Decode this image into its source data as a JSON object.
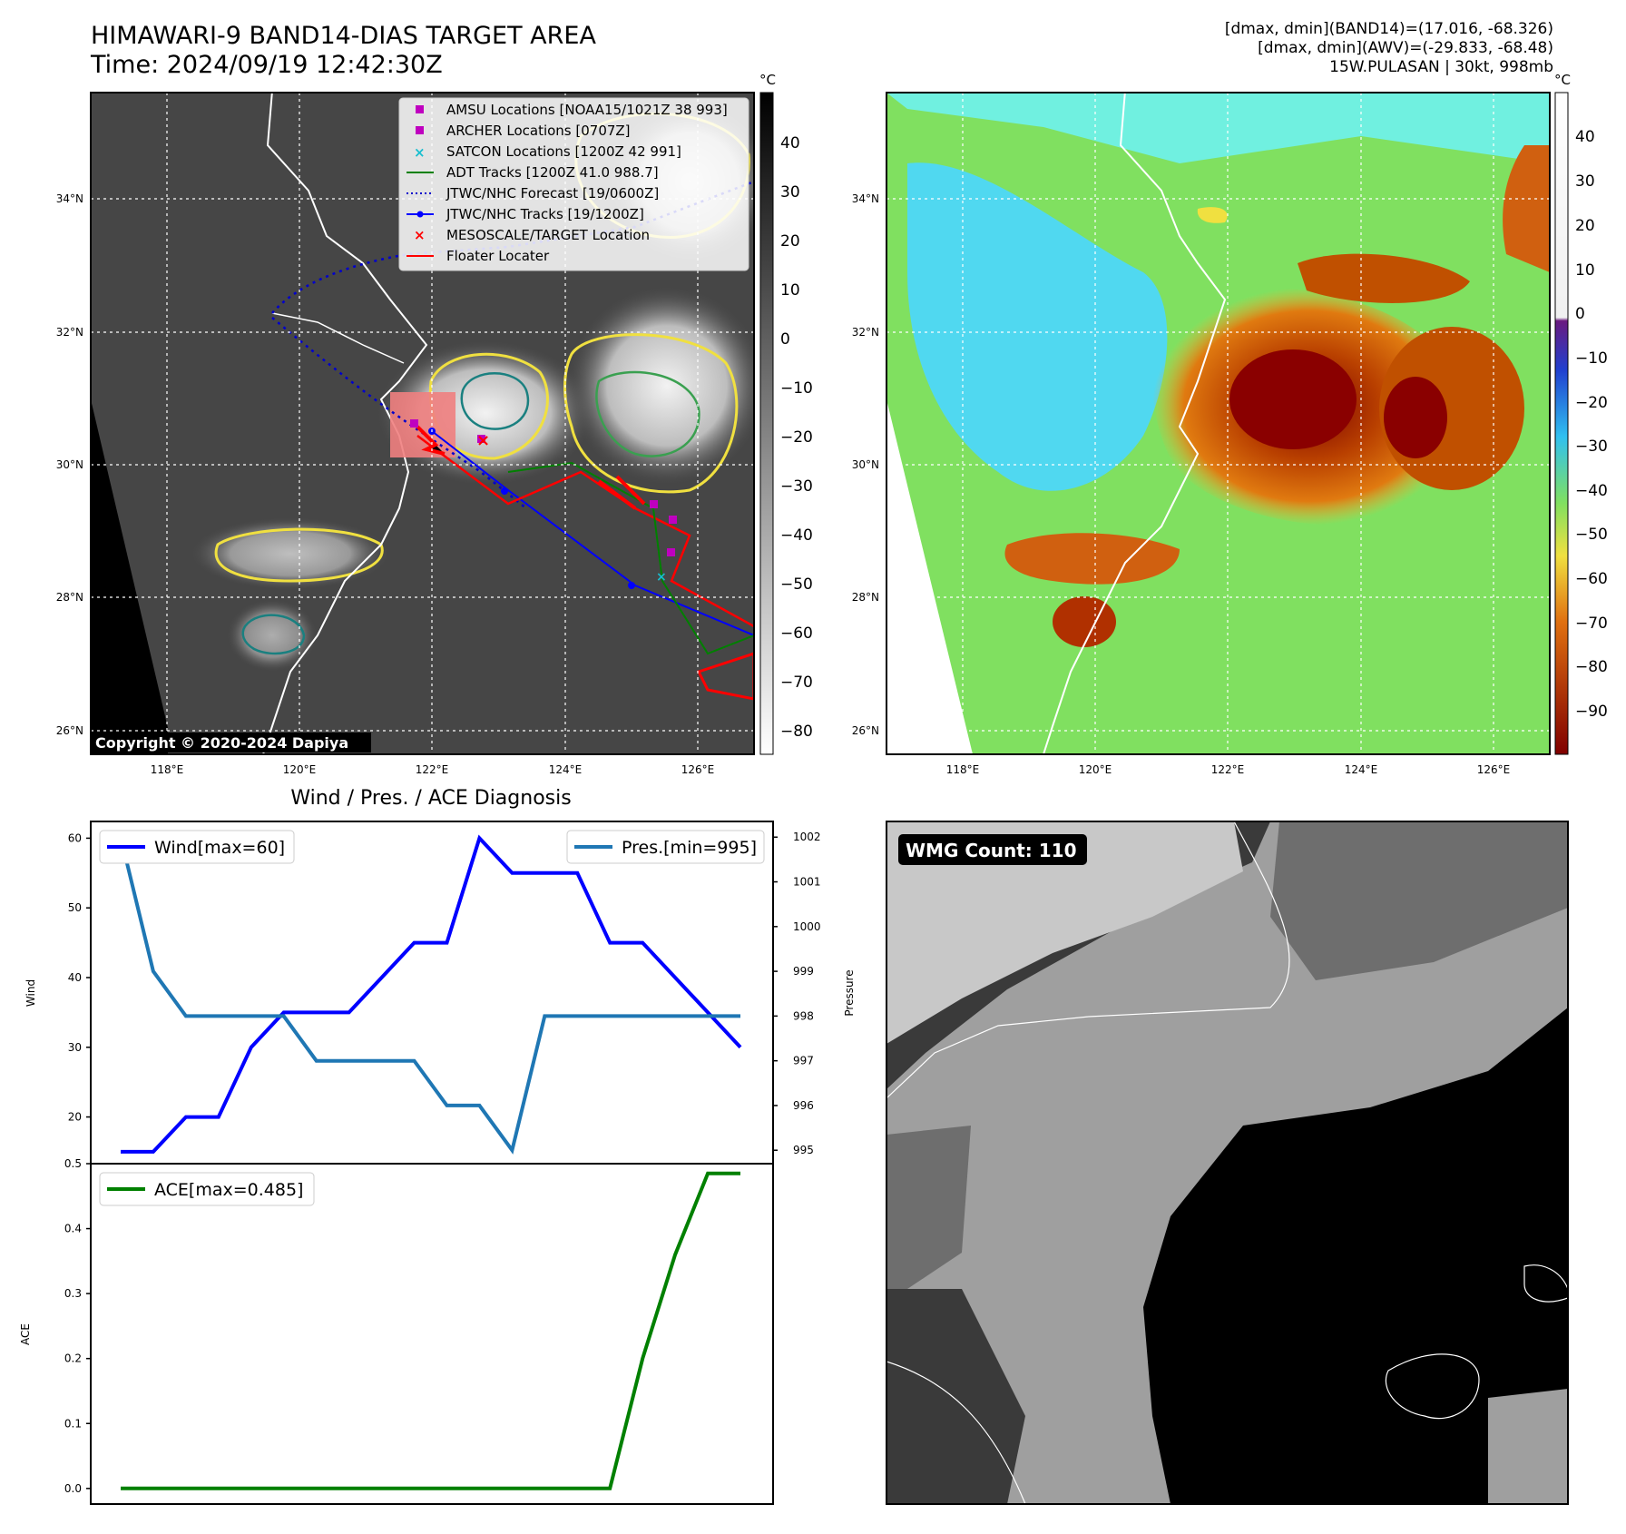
{
  "header": {
    "title": "HIMAWARI-9 BAND14-DIAS TARGET AREA",
    "time": "Time: 2024/09/19 12:42:30Z",
    "stats_band14": "[dmax, dmin](BAND14)=(17.016, -68.326)",
    "stats_awv": "[dmax, dmin](AWV)=(-29.833, -68.48)",
    "storm": "15W.PULASAN | 30kt, 998mb"
  },
  "map_common": {
    "lon_ticks": [
      "118°E",
      "120°E",
      "122°E",
      "124°E",
      "126°E"
    ],
    "lat_ticks": [
      "34°N",
      "32°N",
      "30°N",
      "28°N",
      "26°N"
    ],
    "unit": "°C"
  },
  "ir_panel": {
    "colorbar_ticks": [
      "40",
      "30",
      "20",
      "10",
      "0",
      "−10",
      "−20",
      "−30",
      "−40",
      "−50",
      "−60",
      "−70",
      "−80"
    ],
    "copyright": "Copyright © 2020-2024 Dapiya",
    "legend": [
      {
        "label": "AMSU Locations [NOAA15/1021Z 38 993]",
        "color": "#bf00bf",
        "marker": "square"
      },
      {
        "label": "ARCHER Locations [0707Z]",
        "color": "#bf00bf",
        "marker": "square"
      },
      {
        "label": "SATCON Locations [1200Z 42 991]",
        "color": "#17becf",
        "marker": "x"
      },
      {
        "label": "ADT Tracks [1200Z 41.0 988.7]",
        "color": "#008000",
        "marker": "line"
      },
      {
        "label": "JTWC/NHC Forecast [19/0600Z]",
        "color": "#0000cc",
        "marker": "dotted"
      },
      {
        "label": "JTWC/NHC Tracks [19/1200Z]",
        "color": "#0000ff",
        "marker": "line-dot"
      },
      {
        "label": "MESOSCALE/TARGET Location",
        "color": "#ff0000",
        "marker": "x"
      },
      {
        "label": "Floater Locater",
        "color": "#ff0000",
        "marker": "line"
      }
    ]
  },
  "awv_panel": {
    "colorbar_ticks": [
      "40",
      "30",
      "20",
      "10",
      "0",
      "−10",
      "−20",
      "−30",
      "−40",
      "−50",
      "−60",
      "−70",
      "−80",
      "−90"
    ]
  },
  "wmg_panel": {
    "label": "WMG Count: 110"
  },
  "chart_data": [
    {
      "type": "line",
      "title": "Wind / Pres. / ACE Diagnosis",
      "x": [
        0,
        1,
        2,
        3,
        4,
        5,
        6,
        7,
        8,
        9,
        10,
        11,
        12,
        13,
        14,
        15,
        16,
        17,
        18,
        19
      ],
      "series": [
        {
          "name": "Wind[max=60]",
          "axis": "left",
          "color": "#0000ff",
          "values": [
            15,
            15,
            20,
            20,
            30,
            35,
            35,
            35,
            40,
            45,
            45,
            60,
            55,
            55,
            55,
            45,
            45,
            40,
            35,
            30
          ]
        },
        {
          "name": "Pres.[min=995]",
          "axis": "right",
          "color": "#1f77b4",
          "values": [
            1002,
            999,
            998,
            998,
            998,
            998,
            997,
            997,
            997,
            997,
            996,
            996,
            995,
            998,
            998,
            998,
            998,
            998,
            998,
            998
          ]
        }
      ],
      "ylabel": "Wind",
      "ylabel_right": "Pressure",
      "ylim": [
        13.3,
        62.4
      ],
      "ylim_right": [
        994.7,
        1002.35
      ],
      "yticks": [
        20,
        30,
        40,
        50,
        60
      ],
      "yticks_right": [
        995,
        996,
        997,
        998,
        999,
        1000,
        1001,
        1002
      ]
    },
    {
      "type": "line",
      "x": [
        0,
        1,
        2,
        3,
        4,
        5,
        6,
        7,
        8,
        9,
        10,
        11,
        12,
        13,
        14,
        15,
        16,
        17,
        18,
        19
      ],
      "series": [
        {
          "name": "ACE[max=0.485]",
          "color": "#008000",
          "values": [
            0,
            0,
            0,
            0,
            0,
            0,
            0,
            0,
            0,
            0,
            0,
            0,
            0,
            0,
            0,
            0,
            0.2,
            0.36,
            0.485,
            0.485
          ]
        }
      ],
      "ylabel": "ACE",
      "ylim": [
        -0.024,
        0.5
      ],
      "yticks": [
        0.0,
        0.1,
        0.2,
        0.3,
        0.4,
        0.5
      ],
      "ytick_labels": [
        "0.0",
        "0.1",
        "0.2",
        "0.3",
        "0.4",
        "0.5"
      ]
    }
  ]
}
